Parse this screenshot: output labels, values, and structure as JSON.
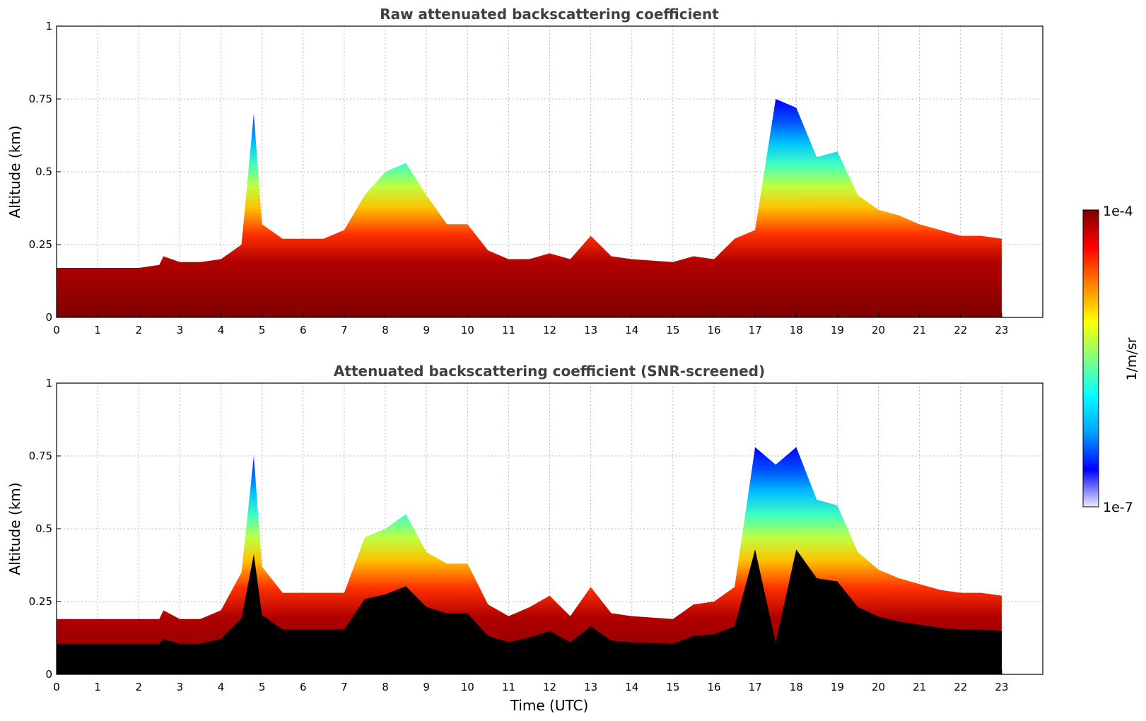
{
  "chart_data": [
    {
      "type": "heatmap",
      "title": "Raw attenuated backscattering coefficient",
      "xlabel": "",
      "ylabel": "Altitude (km)",
      "xlim": [
        0,
        24
      ],
      "ylim": [
        0,
        1
      ],
      "x_ticks": [
        "0",
        "1",
        "2",
        "3",
        "4",
        "5",
        "6",
        "7",
        "8",
        "9",
        "10",
        "11",
        "12",
        "13",
        "14",
        "15",
        "16",
        "17",
        "18",
        "19",
        "20",
        "21",
        "22",
        "23"
      ],
      "y_ticks": [
        "0",
        "0.25",
        "0.5",
        "0.75",
        "1"
      ],
      "y_tick_values": [
        0,
        0.25,
        0.5,
        0.75,
        1
      ],
      "grid": true,
      "data_end_hour": 23,
      "layer_top_km": [
        [
          0,
          0.17
        ],
        [
          1,
          0.17
        ],
        [
          2,
          0.17
        ],
        [
          2.5,
          0.18
        ],
        [
          2.6,
          0.21
        ],
        [
          3,
          0.19
        ],
        [
          3.5,
          0.19
        ],
        [
          4,
          0.2
        ],
        [
          4.5,
          0.25
        ],
        [
          4.8,
          0.7
        ],
        [
          5,
          0.32
        ],
        [
          5.5,
          0.27
        ],
        [
          6,
          0.27
        ],
        [
          6.5,
          0.27
        ],
        [
          7,
          0.3
        ],
        [
          7.5,
          0.42
        ],
        [
          8,
          0.5
        ],
        [
          8.5,
          0.53
        ],
        [
          9,
          0.42
        ],
        [
          9.5,
          0.32
        ],
        [
          10,
          0.32
        ],
        [
          10.5,
          0.23
        ],
        [
          11,
          0.2
        ],
        [
          11.5,
          0.2
        ],
        [
          12,
          0.22
        ],
        [
          12.5,
          0.2
        ],
        [
          13,
          0.28
        ],
        [
          13.5,
          0.21
        ],
        [
          14,
          0.2
        ],
        [
          15,
          0.19
        ],
        [
          15.5,
          0.21
        ],
        [
          16,
          0.2
        ],
        [
          16.5,
          0.27
        ],
        [
          17,
          0.3
        ],
        [
          17.5,
          0.75
        ],
        [
          18,
          0.72
        ],
        [
          18.5,
          0.55
        ],
        [
          19,
          0.57
        ],
        [
          19.5,
          0.42
        ],
        [
          20,
          0.37
        ],
        [
          20.5,
          0.35
        ],
        [
          21,
          0.32
        ],
        [
          21.5,
          0.3
        ],
        [
          22,
          0.28
        ],
        [
          22.5,
          0.28
        ],
        [
          23,
          0.27
        ]
      ],
      "colorbar": {
        "min_label": "1e-7",
        "max_label": "1e-4",
        "label": "1/m/sr",
        "scale": "log",
        "colormap": "jet",
        "colors": [
          "#ececff",
          "#0000ff",
          "#00a0ff",
          "#00ffff",
          "#80ff80",
          "#ffff00",
          "#ff8000",
          "#ff0000",
          "#800000"
        ]
      }
    },
    {
      "type": "heatmap",
      "title": "Attenuated backscattering coefficient (SNR-screened)",
      "xlabel": "Time (UTC)",
      "ylabel": "Altitude (km)",
      "xlim": [
        0,
        24
      ],
      "ylim": [
        0,
        1
      ],
      "x_ticks": [
        "0",
        "1",
        "2",
        "3",
        "4",
        "5",
        "6",
        "7",
        "8",
        "9",
        "10",
        "11",
        "12",
        "13",
        "14",
        "15",
        "16",
        "17",
        "18",
        "19",
        "20",
        "21",
        "22",
        "23"
      ],
      "y_ticks": [
        "0",
        "0.25",
        "0.5",
        "0.75",
        "1"
      ],
      "y_tick_values": [
        0,
        0.25,
        0.5,
        0.75,
        1
      ],
      "grid": true,
      "data_end_hour": 23,
      "layer_top_km": [
        [
          0,
          0.19
        ],
        [
          1,
          0.19
        ],
        [
          2,
          0.19
        ],
        [
          2.5,
          0.19
        ],
        [
          2.6,
          0.22
        ],
        [
          3,
          0.19
        ],
        [
          3.5,
          0.19
        ],
        [
          4,
          0.22
        ],
        [
          4.5,
          0.35
        ],
        [
          4.8,
          0.75
        ],
        [
          5,
          0.37
        ],
        [
          5.5,
          0.28
        ],
        [
          6,
          0.28
        ],
        [
          6.5,
          0.28
        ],
        [
          7,
          0.28
        ],
        [
          7.5,
          0.47
        ],
        [
          8,
          0.5
        ],
        [
          8.5,
          0.55
        ],
        [
          9,
          0.42
        ],
        [
          9.5,
          0.38
        ],
        [
          10,
          0.38
        ],
        [
          10.5,
          0.24
        ],
        [
          11,
          0.2
        ],
        [
          11.5,
          0.23
        ],
        [
          12,
          0.27
        ],
        [
          12.5,
          0.2
        ],
        [
          13,
          0.3
        ],
        [
          13.5,
          0.21
        ],
        [
          14,
          0.2
        ],
        [
          15,
          0.19
        ],
        [
          15.5,
          0.24
        ],
        [
          16,
          0.25
        ],
        [
          16.5,
          0.3
        ],
        [
          17,
          0.78
        ],
        [
          17.5,
          0.72
        ],
        [
          18,
          0.78
        ],
        [
          18.5,
          0.6
        ],
        [
          19,
          0.58
        ],
        [
          19.5,
          0.42
        ],
        [
          20,
          0.36
        ],
        [
          20.5,
          0.33
        ],
        [
          21,
          0.31
        ],
        [
          21.5,
          0.29
        ],
        [
          22,
          0.28
        ],
        [
          22.5,
          0.28
        ],
        [
          23,
          0.27
        ]
      ]
    }
  ]
}
